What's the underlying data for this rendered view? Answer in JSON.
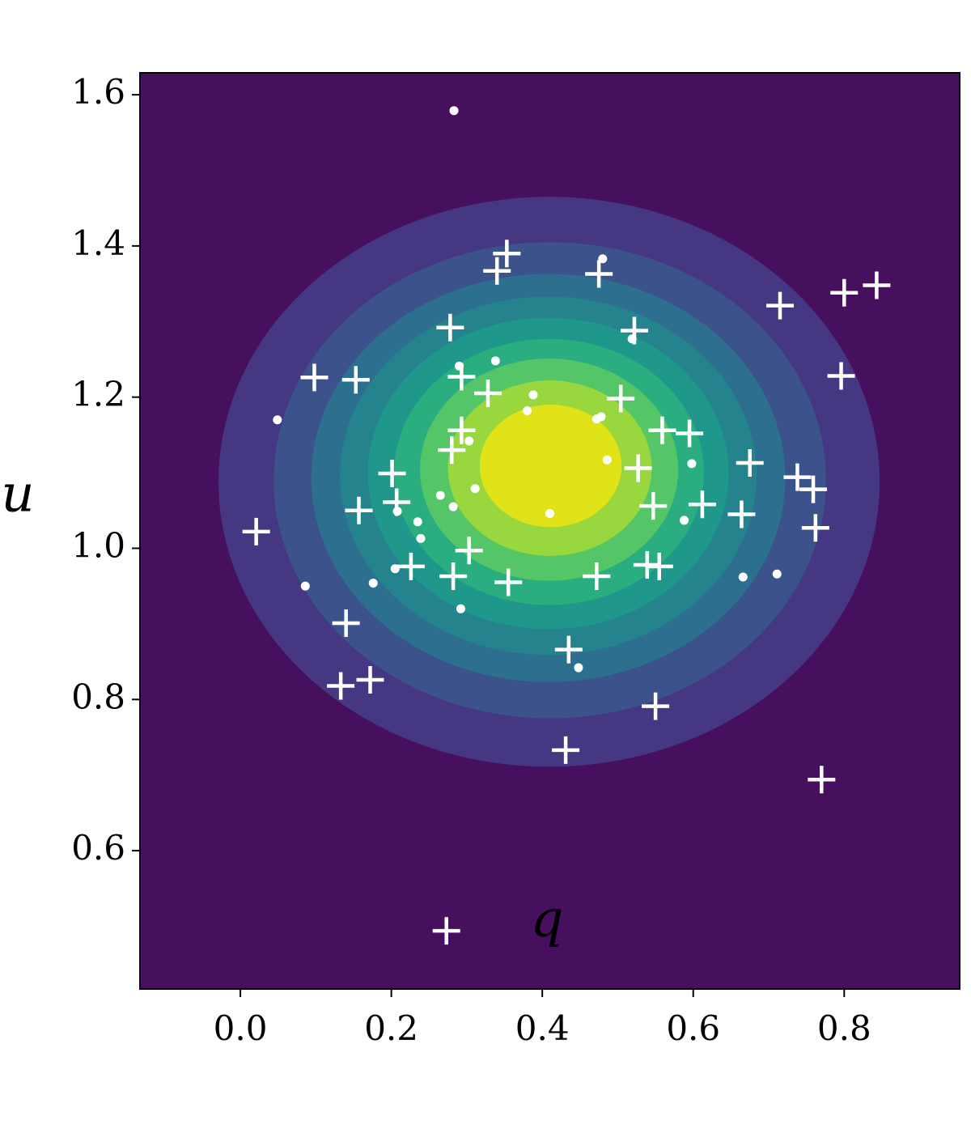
{
  "chart_data": {
    "type": "contour-scatter",
    "x_label": "q",
    "y_label": "u",
    "xlim": [
      -0.133,
      0.953
    ],
    "ylim": [
      0.417,
      1.629
    ],
    "xticks": [
      {
        "value": 0,
        "label": "0.0"
      },
      {
        "value": 0.2,
        "label": "0.2"
      },
      {
        "value": 0.4,
        "label": "0.4"
      },
      {
        "value": 0.6,
        "label": "0.6"
      },
      {
        "value": 0.8,
        "label": "0.8"
      }
    ],
    "yticks": [
      {
        "value": 0.6,
        "label": "0.6"
      },
      {
        "value": 0.8,
        "label": "0.8"
      },
      {
        "value": 1,
        "label": "1.0"
      },
      {
        "value": 1.2,
        "label": "1.2"
      },
      {
        "value": 1.4,
        "label": "1.4"
      },
      {
        "value": 1.6,
        "label": "1.6"
      }
    ],
    "background_color": "#46105f",
    "contours": [
      {
        "center": [
          0.409,
          1.088
        ],
        "radii": [
          0.438,
          0.377
        ],
        "color": "#453781"
      },
      {
        "center": [
          0.41,
          1.09
        ],
        "radii": [
          0.366,
          0.315
        ],
        "color": "#3b528b"
      },
      {
        "center": [
          0.408,
          1.093
        ],
        "radii": [
          0.314,
          0.27
        ],
        "color": "#2d6f8e"
      },
      {
        "center": [
          0.408,
          1.096
        ],
        "radii": [
          0.276,
          0.237
        ],
        "color": "#25838e"
      },
      {
        "center": [
          0.408,
          1.099
        ],
        "radii": [
          0.239,
          0.206
        ],
        "color": "#1f988b"
      },
      {
        "center": [
          0.409,
          1.101
        ],
        "radii": [
          0.205,
          0.176
        ],
        "color": "#2aae7f"
      },
      {
        "center": [
          0.409,
          1.104
        ],
        "radii": [
          0.171,
          0.147
        ],
        "color": "#55c667"
      },
      {
        "center": [
          0.41,
          1.106
        ],
        "radii": [
          0.135,
          0.116
        ],
        "color": "#98d83e"
      },
      {
        "center": [
          0.411,
          1.109
        ],
        "radii": [
          0.094,
          0.081
        ],
        "color": "#dfe318"
      }
    ],
    "series": [
      {
        "marker": "plus",
        "color": "#ffffff",
        "x": [
          0.353,
          0.34,
          0.475,
          0.843,
          0.8,
          0.715,
          0.278,
          0.522,
          0.098,
          0.153,
          0.796,
          0.293,
          0.328,
          0.504,
          0.293,
          0.559,
          0.595,
          0.28,
          0.527,
          0.675,
          0.201,
          0.738,
          0.759,
          0.207,
          0.547,
          0.612,
          0.157,
          0.664,
          0.762,
          0.021,
          0.303,
          0.226,
          0.539,
          0.555,
          0.282,
          0.355,
          0.472,
          0.14,
          0.435,
          0.133,
          0.172,
          0.55,
          0.431,
          0.77,
          0.273
        ],
        "values": [
          1.39,
          1.367,
          1.363,
          1.348,
          1.338,
          1.321,
          1.292,
          1.288,
          1.226,
          1.223,
          1.228,
          1.227,
          1.205,
          1.198,
          1.156,
          1.156,
          1.152,
          1.13,
          1.106,
          1.113,
          1.099,
          1.094,
          1.078,
          1.061,
          1.056,
          1.058,
          1.05,
          1.045,
          1.027,
          1.022,
          0.997,
          0.976,
          0.978,
          0.976,
          0.963,
          0.955,
          0.963,
          0.901,
          0.866,
          0.818,
          0.826,
          0.791,
          0.733,
          0.694,
          0.494
        ]
      },
      {
        "marker": "dot",
        "color": "#ffffff",
        "x": [
          0.283,
          0.049,
          0.338,
          0.29,
          0.388,
          0.38,
          0.472,
          0.478,
          0.48,
          0.519,
          0.486,
          0.598,
          0.311,
          0.265,
          0.282,
          0.41,
          0.235,
          0.239,
          0.208,
          0.588,
          0.176,
          0.086,
          0.292,
          0.448,
          0.666,
          0.711,
          0.205,
          0.303
        ],
        "values": [
          1.579,
          1.17,
          1.248,
          1.241,
          1.203,
          1.182,
          1.171,
          1.174,
          1.383,
          1.277,
          1.117,
          1.112,
          1.079,
          1.07,
          1.055,
          1.046,
          1.035,
          1.013,
          1.049,
          1.037,
          0.954,
          0.95,
          0.92,
          0.842,
          0.962,
          0.966,
          0.973,
          1.142
        ]
      }
    ]
  }
}
